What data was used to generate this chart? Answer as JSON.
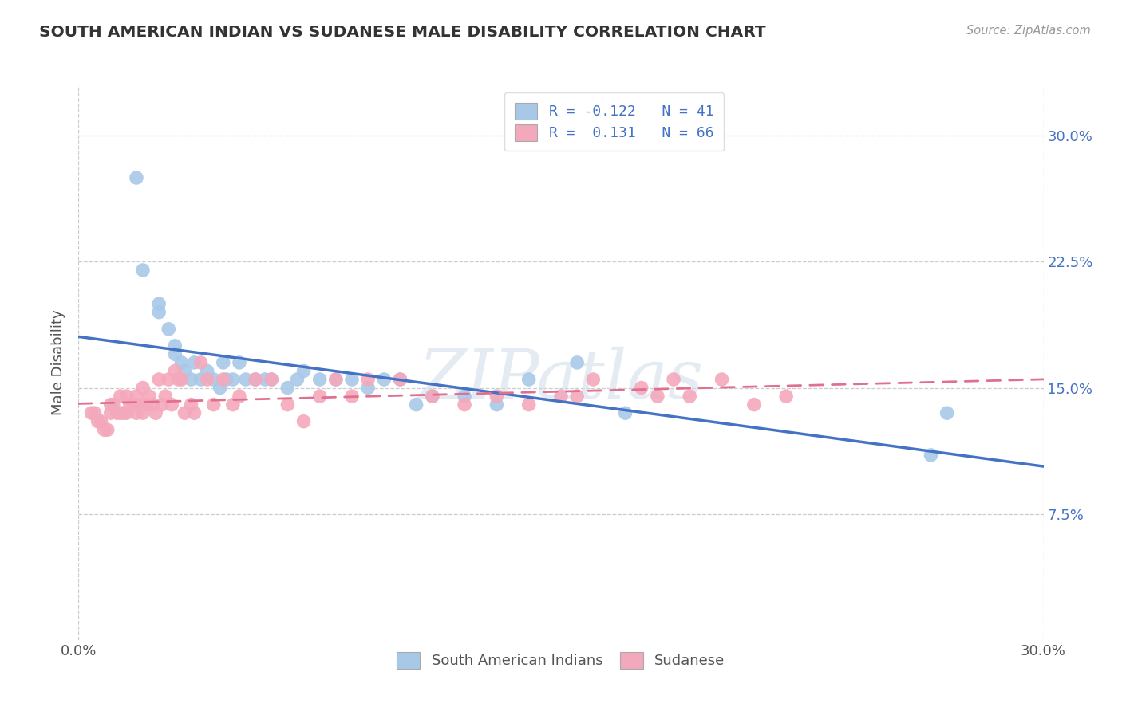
{
  "title": "SOUTH AMERICAN INDIAN VS SUDANESE MALE DISABILITY CORRELATION CHART",
  "source": "Source: ZipAtlas.com",
  "ylabel": "Male Disability",
  "xlim": [
    0.0,
    0.3
  ],
  "ylim": [
    0.0,
    0.33
  ],
  "xtick_positions": [
    0.0,
    0.3
  ],
  "xticklabels": [
    "0.0%",
    "30.0%"
  ],
  "ytick_positions": [
    0.075,
    0.15,
    0.225,
    0.3
  ],
  "ytick_labels": [
    "7.5%",
    "15.0%",
    "22.5%",
    "30.0%"
  ],
  "legend_R1": "-0.122",
  "legend_N1": "41",
  "legend_R2": "0.131",
  "legend_N2": "66",
  "color_blue": "#a8c8e8",
  "color_pink": "#f4a8bc",
  "color_line_blue": "#4472c4",
  "color_line_pink": "#e07090",
  "watermark_text": "ZIPatlas",
  "blue_scatter_x": [
    0.018,
    0.02,
    0.025,
    0.025,
    0.028,
    0.03,
    0.03,
    0.032,
    0.033,
    0.035,
    0.036,
    0.038,
    0.04,
    0.042,
    0.044,
    0.045,
    0.046,
    0.048,
    0.05,
    0.052,
    0.055,
    0.058,
    0.06,
    0.065,
    0.068,
    0.07,
    0.075,
    0.08,
    0.085,
    0.09,
    0.095,
    0.1,
    0.105,
    0.11,
    0.12,
    0.13,
    0.14,
    0.155,
    0.17,
    0.265,
    0.27
  ],
  "blue_scatter_y": [
    0.275,
    0.22,
    0.2,
    0.195,
    0.185,
    0.175,
    0.17,
    0.165,
    0.16,
    0.155,
    0.165,
    0.155,
    0.16,
    0.155,
    0.15,
    0.165,
    0.155,
    0.155,
    0.165,
    0.155,
    0.155,
    0.155,
    0.155,
    0.15,
    0.155,
    0.16,
    0.155,
    0.155,
    0.155,
    0.15,
    0.155,
    0.155,
    0.14,
    0.145,
    0.145,
    0.14,
    0.155,
    0.165,
    0.135,
    0.11,
    0.135
  ],
  "pink_scatter_x": [
    0.004,
    0.005,
    0.006,
    0.007,
    0.008,
    0.009,
    0.01,
    0.01,
    0.011,
    0.012,
    0.013,
    0.013,
    0.014,
    0.015,
    0.015,
    0.016,
    0.017,
    0.018,
    0.018,
    0.019,
    0.02,
    0.02,
    0.021,
    0.022,
    0.023,
    0.024,
    0.025,
    0.026,
    0.027,
    0.028,
    0.029,
    0.03,
    0.031,
    0.032,
    0.033,
    0.035,
    0.036,
    0.038,
    0.04,
    0.042,
    0.045,
    0.048,
    0.05,
    0.055,
    0.06,
    0.065,
    0.07,
    0.075,
    0.08,
    0.085,
    0.09,
    0.1,
    0.11,
    0.12,
    0.13,
    0.14,
    0.15,
    0.155,
    0.16,
    0.175,
    0.18,
    0.185,
    0.19,
    0.2,
    0.21,
    0.22
  ],
  "pink_scatter_y": [
    0.135,
    0.135,
    0.13,
    0.13,
    0.125,
    0.125,
    0.14,
    0.135,
    0.14,
    0.135,
    0.145,
    0.135,
    0.135,
    0.145,
    0.135,
    0.14,
    0.14,
    0.145,
    0.135,
    0.14,
    0.15,
    0.135,
    0.14,
    0.145,
    0.14,
    0.135,
    0.155,
    0.14,
    0.145,
    0.155,
    0.14,
    0.16,
    0.155,
    0.155,
    0.135,
    0.14,
    0.135,
    0.165,
    0.155,
    0.14,
    0.155,
    0.14,
    0.145,
    0.155,
    0.155,
    0.14,
    0.13,
    0.145,
    0.155,
    0.145,
    0.155,
    0.155,
    0.145,
    0.14,
    0.145,
    0.14,
    0.145,
    0.145,
    0.155,
    0.15,
    0.145,
    0.155,
    0.145,
    0.155,
    0.14,
    0.145
  ]
}
